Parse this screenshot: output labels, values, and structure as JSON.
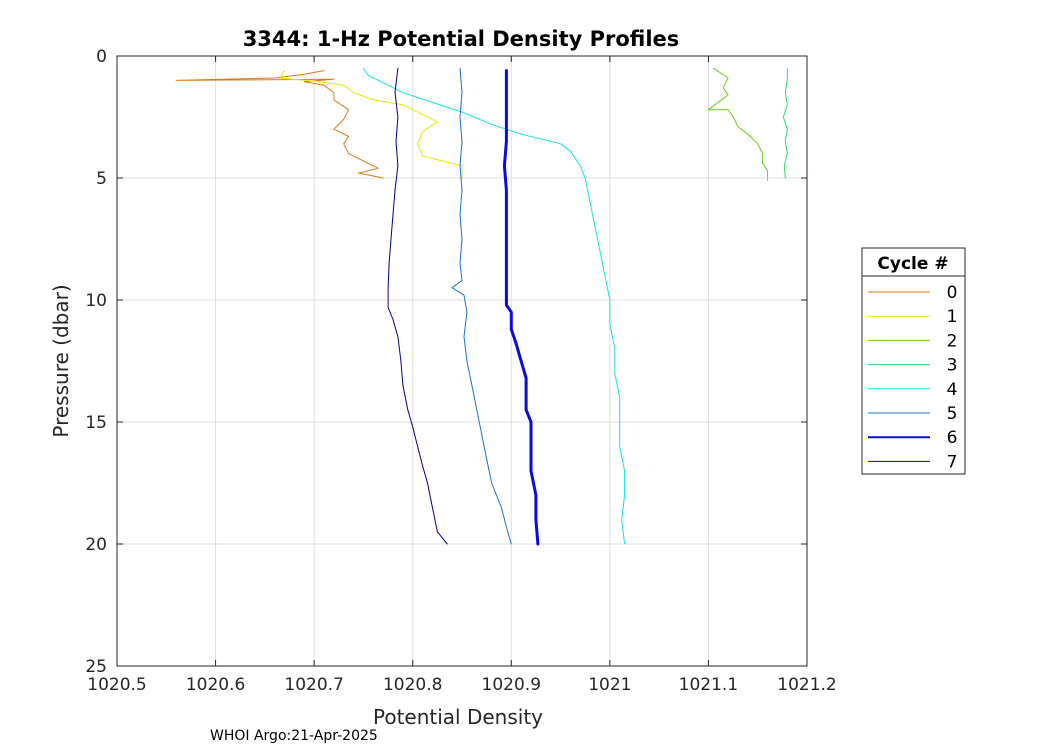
{
  "chart_data": {
    "type": "line",
    "title": "3344: 1-Hz Potential Density Profiles",
    "xlabel": "Potential Density",
    "ylabel": "Pressure (dbar)",
    "xlim": [
      1020.5,
      1021.2
    ],
    "ylim": [
      0,
      25
    ],
    "y_reversed": true,
    "grid": true,
    "xticks": [
      1020.5,
      1020.6,
      1020.7,
      1020.8,
      1020.9,
      1021,
      1021.1,
      1021.2
    ],
    "xtick_labels": [
      "1020.5",
      "1020.6",
      "1020.7",
      "1020.8",
      "1020.9",
      "1021",
      "1021.1",
      "1021.2"
    ],
    "yticks": [
      0,
      5,
      10,
      15,
      20,
      25
    ],
    "ytick_labels": [
      "0",
      "5",
      "10",
      "15",
      "20",
      "25"
    ],
    "legend": {
      "title": "Cycle #",
      "placement": "right-outside"
    },
    "footer": "WHOI Argo:21-Apr-2025",
    "series": [
      {
        "name": "0",
        "color": "#d97a1a",
        "width": 1,
        "points": [
          [
            1020.71,
            0.6
          ],
          [
            1020.69,
            0.75
          ],
          [
            1020.66,
            0.9
          ],
          [
            1020.56,
            1.0
          ],
          [
            1020.63,
            0.98
          ],
          [
            1020.72,
            0.95
          ],
          [
            1020.69,
            1.05
          ],
          [
            1020.71,
            1.2
          ],
          [
            1020.72,
            1.5
          ],
          [
            1020.72,
            1.8
          ],
          [
            1020.735,
            2.2
          ],
          [
            1020.73,
            2.6
          ],
          [
            1020.72,
            3.0
          ],
          [
            1020.735,
            3.3
          ],
          [
            1020.73,
            3.6
          ],
          [
            1020.735,
            4.0
          ],
          [
            1020.75,
            4.3
          ],
          [
            1020.765,
            4.6
          ],
          [
            1020.745,
            4.8
          ],
          [
            1020.77,
            5.0
          ]
        ]
      },
      {
        "name": "1",
        "color": "#e6e60a",
        "width": 1,
        "points": [
          [
            1020.67,
            0.6
          ],
          [
            1020.665,
            0.9
          ],
          [
            1020.705,
            1.05
          ],
          [
            1020.73,
            1.2
          ],
          [
            1020.74,
            1.5
          ],
          [
            1020.76,
            1.8
          ],
          [
            1020.79,
            2.0
          ],
          [
            1020.805,
            2.3
          ],
          [
            1020.825,
            2.7
          ],
          [
            1020.81,
            3.1
          ],
          [
            1020.805,
            3.6
          ],
          [
            1020.81,
            4.1
          ],
          [
            1020.83,
            4.3
          ],
          [
            1020.85,
            4.5
          ],
          [
            1020.85,
            5.0
          ]
        ]
      },
      {
        "name": "2",
        "color": "#66cc1a",
        "width": 1,
        "points": [
          [
            1021.105,
            0.5
          ],
          [
            1021.12,
            0.9
          ],
          [
            1021.115,
            1.3
          ],
          [
            1021.12,
            1.6
          ],
          [
            1021.1,
            2.2
          ],
          [
            1021.12,
            2.2
          ],
          [
            1021.125,
            2.5
          ],
          [
            1021.13,
            2.9
          ],
          [
            1021.14,
            3.2
          ],
          [
            1021.15,
            3.6
          ],
          [
            1021.155,
            4.0
          ],
          [
            1021.155,
            4.4
          ],
          [
            1021.16,
            4.7
          ],
          [
            1021.16,
            5.1
          ]
        ]
      },
      {
        "name": "3",
        "color": "#33d966",
        "width": 1,
        "points": [
          [
            1021.18,
            0.5
          ],
          [
            1021.18,
            1.0
          ],
          [
            1021.178,
            1.5
          ],
          [
            1021.18,
            2.0
          ],
          [
            1021.176,
            2.5
          ],
          [
            1021.18,
            3.0
          ],
          [
            1021.178,
            3.5
          ],
          [
            1021.18,
            4.0
          ],
          [
            1021.177,
            4.5
          ],
          [
            1021.178,
            5.0
          ]
        ]
      },
      {
        "name": "4",
        "color": "#1ae0e0",
        "width": 1,
        "points": [
          [
            1020.75,
            0.5
          ],
          [
            1020.755,
            0.8
          ],
          [
            1020.77,
            1.1
          ],
          [
            1020.79,
            1.5
          ],
          [
            1020.82,
            1.9
          ],
          [
            1020.85,
            2.3
          ],
          [
            1020.88,
            2.8
          ],
          [
            1020.91,
            3.2
          ],
          [
            1020.95,
            3.6
          ],
          [
            1020.96,
            3.9
          ],
          [
            1020.97,
            4.5
          ],
          [
            1020.975,
            5.0
          ],
          [
            1020.98,
            6.0
          ],
          [
            1020.985,
            7.0
          ],
          [
            1020.99,
            8.0
          ],
          [
            1020.995,
            9.0
          ],
          [
            1021.0,
            10.0
          ],
          [
            1021.0,
            11.0
          ],
          [
            1021.005,
            12.0
          ],
          [
            1021.005,
            13.0
          ],
          [
            1021.01,
            14.0
          ],
          [
            1021.01,
            15.0
          ],
          [
            1021.01,
            16.0
          ],
          [
            1021.015,
            17.0
          ],
          [
            1021.015,
            18.0
          ],
          [
            1021.012,
            19.0
          ],
          [
            1021.015,
            20.0
          ]
        ]
      },
      {
        "name": "5",
        "color": "#1a73cc",
        "width": 1,
        "points": [
          [
            1020.848,
            0.5
          ],
          [
            1020.85,
            1.5
          ],
          [
            1020.848,
            2.5
          ],
          [
            1020.85,
            3.5
          ],
          [
            1020.848,
            4.5
          ],
          [
            1020.85,
            5.5
          ],
          [
            1020.848,
            6.5
          ],
          [
            1020.85,
            7.5
          ],
          [
            1020.848,
            8.5
          ],
          [
            1020.85,
            9.2
          ],
          [
            1020.84,
            9.5
          ],
          [
            1020.852,
            9.8
          ],
          [
            1020.855,
            10.5
          ],
          [
            1020.852,
            11.5
          ],
          [
            1020.855,
            12.5
          ],
          [
            1020.86,
            13.5
          ],
          [
            1020.865,
            14.5
          ],
          [
            1020.87,
            15.5
          ],
          [
            1020.875,
            16.5
          ],
          [
            1020.88,
            17.5
          ],
          [
            1020.89,
            18.5
          ],
          [
            1020.895,
            19.3
          ],
          [
            1020.9,
            20.0
          ]
        ]
      },
      {
        "name": "6",
        "color": "#0a0ae6",
        "width": 3,
        "points": [
          [
            1020.895,
            0.6
          ],
          [
            1020.895,
            1.5
          ],
          [
            1020.895,
            2.5
          ],
          [
            1020.895,
            3.5
          ],
          [
            1020.893,
            4.5
          ],
          [
            1020.895,
            5.5
          ],
          [
            1020.895,
            6.5
          ],
          [
            1020.895,
            7.5
          ],
          [
            1020.895,
            8.5
          ],
          [
            1020.895,
            9.5
          ],
          [
            1020.895,
            10.2
          ],
          [
            1020.9,
            10.5
          ],
          [
            1020.9,
            11.2
          ],
          [
            1020.905,
            11.8
          ],
          [
            1020.91,
            12.5
          ],
          [
            1020.915,
            13.2
          ],
          [
            1020.915,
            13.8
          ],
          [
            1020.915,
            14.5
          ],
          [
            1020.92,
            15.0
          ],
          [
            1020.92,
            16.0
          ],
          [
            1020.92,
            17.0
          ],
          [
            1020.925,
            18.0
          ],
          [
            1020.925,
            19.0
          ],
          [
            1020.927,
            20.0
          ]
        ]
      },
      {
        "name": "7",
        "color": "#00008c",
        "width": 1,
        "points": [
          [
            1020.785,
            0.5
          ],
          [
            1020.782,
            1.5
          ],
          [
            1020.785,
            2.5
          ],
          [
            1020.783,
            3.5
          ],
          [
            1020.785,
            4.5
          ],
          [
            1020.782,
            5.5
          ],
          [
            1020.78,
            6.5
          ],
          [
            1020.778,
            7.5
          ],
          [
            1020.776,
            8.5
          ],
          [
            1020.775,
            9.5
          ],
          [
            1020.775,
            10.3
          ],
          [
            1020.78,
            10.8
          ],
          [
            1020.785,
            11.5
          ],
          [
            1020.788,
            12.5
          ],
          [
            1020.79,
            13.5
          ],
          [
            1020.795,
            14.5
          ],
          [
            1020.8,
            15.2
          ],
          [
            1020.805,
            16.0
          ],
          [
            1020.81,
            16.8
          ],
          [
            1020.815,
            17.5
          ],
          [
            1020.82,
            18.5
          ],
          [
            1020.825,
            19.5
          ],
          [
            1020.835,
            20.0
          ]
        ]
      }
    ]
  }
}
